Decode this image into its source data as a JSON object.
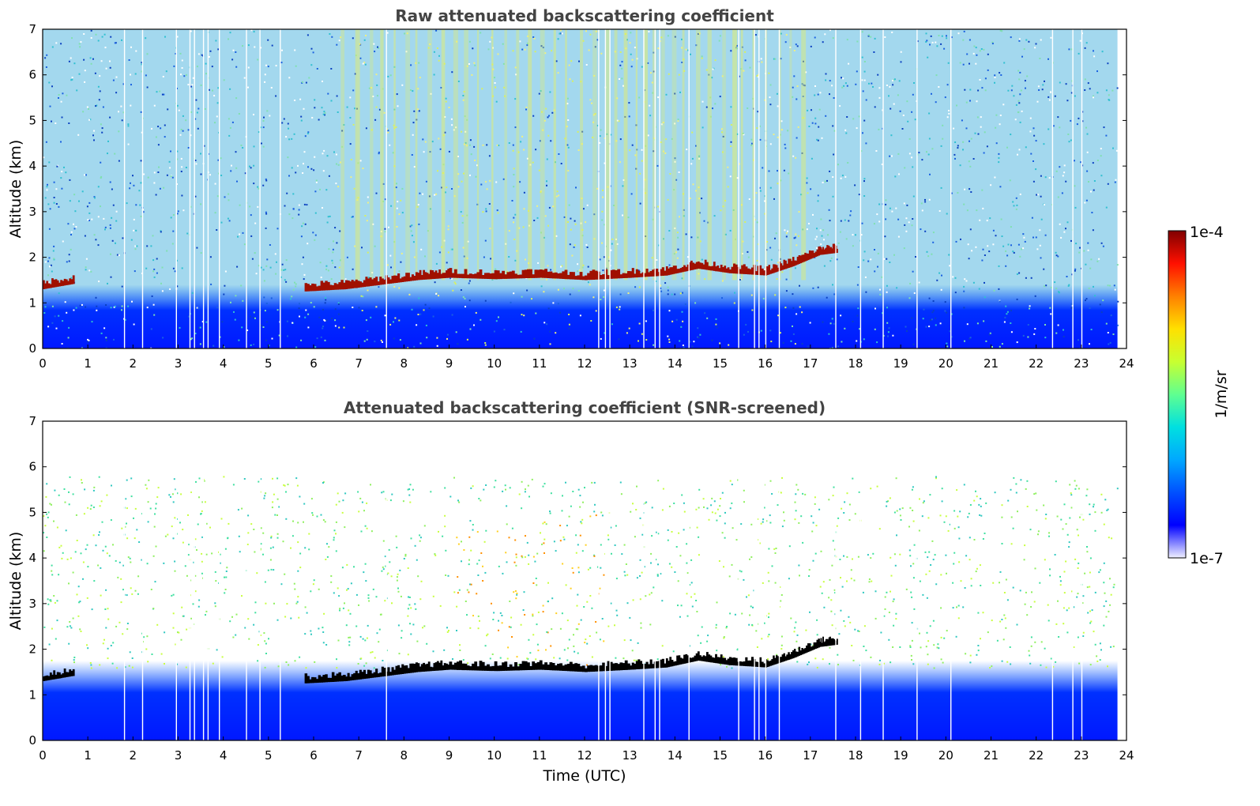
{
  "colors": {
    "colormap": [
      "#f0f0ff",
      "#0000ff",
      "#0050ff",
      "#00a8ff",
      "#00e0e0",
      "#60ff90",
      "#c8ff30",
      "#ffe000",
      "#ff8000",
      "#ff1000",
      "#800000"
    ],
    "layer": "#a01000",
    "layer_screened": "#000000",
    "title": "#444444"
  },
  "colorbar": {
    "max_label": "1e-4",
    "min_label": "1e-7",
    "unit_label": "1/m/sr",
    "scale": "log",
    "range": [
      1e-07,
      0.0001
    ]
  },
  "xaxis": {
    "label": "Time (UTC)",
    "ticks": [
      "0",
      "1",
      "2",
      "3",
      "4",
      "5",
      "6",
      "7",
      "8",
      "9",
      "10",
      "11",
      "12",
      "13",
      "14",
      "15",
      "16",
      "17",
      "18",
      "19",
      "20",
      "21",
      "22",
      "23",
      "24"
    ]
  },
  "chart_data": [
    {
      "type": "heatmap",
      "title": "Raw attenuated backscattering coefficient",
      "xlabel": "",
      "ylabel": "Altitude (km)",
      "xlim": [
        0,
        24
      ],
      "ylim": [
        0,
        7
      ],
      "yticks": [
        "0",
        "1",
        "2",
        "3",
        "4",
        "5",
        "6",
        "7"
      ],
      "value_unit": "1/m/sr",
      "scale": "log",
      "data_end_hour": 23.8,
      "cloud_layer": {
        "x": [
          0,
          0.7,
          5.8,
          6.7,
          7.5,
          8.3,
          9,
          10,
          11,
          12,
          13,
          13.8,
          14.5,
          15.2,
          16,
          16.6,
          17.2,
          17.6
        ],
        "y": [
          1.3,
          1.42,
          1.25,
          1.3,
          1.4,
          1.5,
          1.55,
          1.52,
          1.55,
          1.5,
          1.55,
          1.6,
          1.75,
          1.65,
          1.6,
          1.8,
          2.05,
          2.1
        ]
      },
      "data_gaps_hour": [
        1.8,
        2.2,
        2.95,
        3.25,
        3.35,
        3.55,
        3.65,
        3.9,
        4.5,
        4.8,
        5.25,
        7.6,
        12.3,
        12.45,
        12.55,
        13.3,
        13.55,
        13.65,
        14.3,
        15.4,
        15.75,
        15.85,
        16.0,
        16.3,
        17.55,
        18.1,
        18.6,
        19.35,
        20.1,
        22.35,
        22.8,
        23.0
      ]
    },
    {
      "type": "heatmap",
      "title": "Attenuated backscattering coefficient (SNR-screened)",
      "xlabel": "Time (UTC)",
      "ylabel": "Altitude (km)",
      "xlim": [
        0,
        24
      ],
      "ylim": [
        0,
        7
      ],
      "yticks": [
        "0",
        "1",
        "2",
        "3",
        "4",
        "5",
        "6",
        "7"
      ],
      "value_unit": "1/m/sr",
      "scale": "log",
      "data_end_hour": 23.8,
      "cloud_layer": {
        "x": [
          0,
          0.7,
          5.8,
          6.7,
          7.5,
          8.3,
          9,
          10,
          11,
          12,
          13,
          13.8,
          14.5,
          15.2,
          16,
          16.6,
          17.2,
          17.6
        ],
        "y": [
          1.3,
          1.42,
          1.25,
          1.3,
          1.4,
          1.5,
          1.55,
          1.52,
          1.55,
          1.5,
          1.55,
          1.6,
          1.75,
          1.65,
          1.6,
          1.8,
          2.05,
          2.1
        ]
      },
      "data_gaps_hour": [
        1.8,
        2.2,
        2.95,
        3.25,
        3.35,
        3.55,
        3.65,
        3.9,
        4.5,
        4.8,
        5.25,
        7.6,
        12.3,
        12.45,
        12.55,
        13.3,
        13.55,
        13.65,
        14.3,
        15.4,
        15.75,
        15.85,
        16.0,
        16.3,
        17.55,
        18.1,
        18.6,
        19.35,
        20.1,
        22.35,
        22.8,
        23.0
      ]
    }
  ]
}
